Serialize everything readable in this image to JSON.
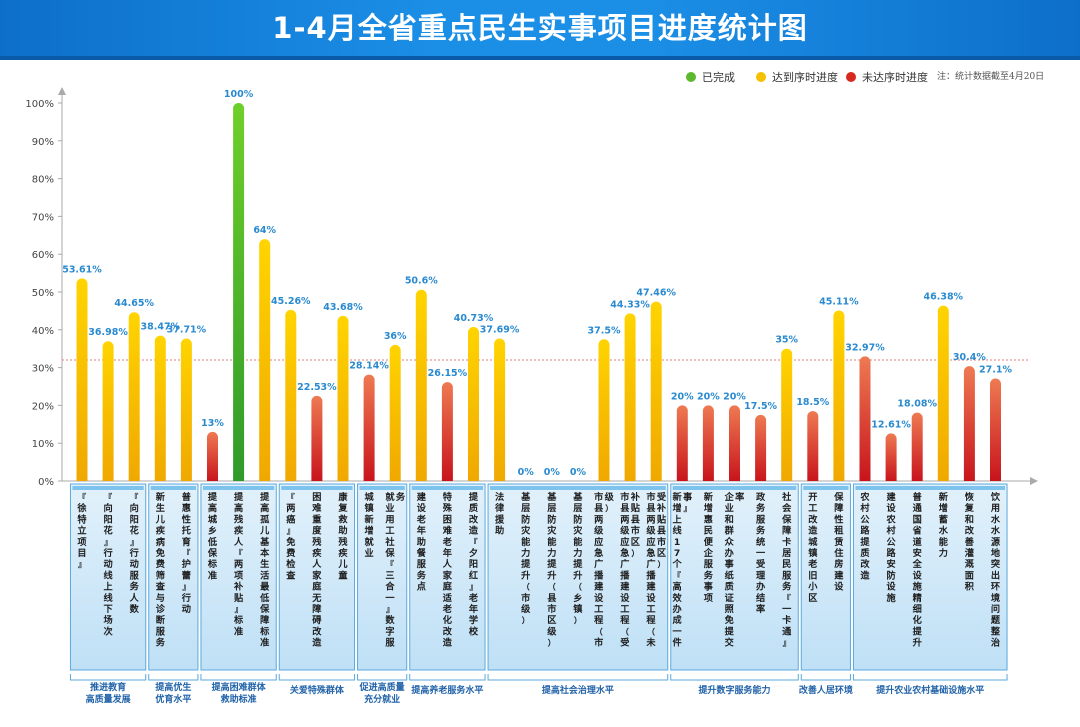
{
  "title": "1-4月全省重点民生实事项目进度统计图",
  "legend": [
    {
      "label": "已完成",
      "color": "#5cb82c"
    },
    {
      "label": "达到序时进度",
      "color": "#f5c000"
    },
    {
      "label": "未达序时进度",
      "color": "#d62a1e"
    }
  ],
  "note": "注：统计数据截至4月20日",
  "chart_data": {
    "type": "bar",
    "ylim": [
      0,
      100
    ],
    "yticks": [
      "0%",
      "10%",
      "20%",
      "30%",
      "40%",
      "50%",
      "60%",
      "70%",
      "80%",
      "90%",
      "100%"
    ],
    "reference_line": 32,
    "categories": [
      "『徐特立项目』",
      "『向阳花』行动线上线下场次",
      "『向阳花』行动服务人数",
      "新生儿疾病免费筛查与诊断服务",
      "普惠性托育『护蕾』行动",
      "提高城乡低保标准",
      "提高残疾人『两项补贴』标准",
      "提高孤儿基本生活最低保障标准",
      "『两癌』免费检查",
      "困难重度残疾人家庭无障碍改造",
      "康复救助残疾儿童",
      "城镇新增就业",
      "就业用工社保『三合一』数字服务",
      "建设老年助餐服务点",
      "特殊困难老年人家庭适老化改造",
      "提质改造『夕阳红』老年学校",
      "法律援助",
      "基层防灾能力提升（市级）",
      "基层防灾能力提升（县市区级）",
      "基层防灾能力提升（乡镇）",
      "市县两级应急广播建设工程（市级）",
      "市县两级应急广播建设工程（受补贴县市区）",
      "市县两级应急广播建设工程（未受补贴县市区）",
      "新增上线17个『高效办成一件事』",
      "新增惠民便企服务事项",
      "企业和群众办事纸质证照免提交率",
      "政务服务统一受理办结率",
      "社会保障卡居民服务『一卡通』",
      "开工改造城镇老旧小区",
      "保障性租赁住房建设",
      "农村公路提质改造",
      "建设农村公路安防设施",
      "普通国省道安全设施精细化提升",
      "新增蓄水能力",
      "恢复和改善灌溉面积",
      "饮用水水源地突出环境问题整治"
    ],
    "values": [
      53.61,
      36.98,
      44.65,
      38.47,
      37.71,
      13,
      100,
      64,
      45.26,
      22.53,
      43.68,
      28.14,
      36,
      50.6,
      26.15,
      40.73,
      37.69,
      0,
      0,
      0,
      37.5,
      44.33,
      47.46,
      20,
      20,
      20,
      17.5,
      35,
      18.5,
      45.11,
      32.97,
      12.61,
      18.08,
      46.38,
      30.4,
      27.1
    ],
    "labels": [
      "53.61%",
      "36.98%",
      "44.65%",
      "38.47%",
      "37.71%",
      "13%",
      "100%",
      "64%",
      "45.26%",
      "22.53%",
      "43.68%",
      "28.14%",
      "36%",
      "50.6%",
      "26.15%",
      "40.73%",
      "37.69%",
      "0%",
      "0%",
      "0%",
      "37.5%",
      "44.33%",
      "47.46%",
      "20%",
      "20%",
      "20%",
      "17.5%",
      "35%",
      "18.5%",
      "45.11%",
      "32.97%",
      "12.61%",
      "18.08%",
      "46.38%",
      "30.4%",
      "27.1%"
    ],
    "status": [
      "y",
      "y",
      "y",
      "y",
      "y",
      "r",
      "g",
      "y",
      "y",
      "r",
      "y",
      "r",
      "y",
      "y",
      "r",
      "y",
      "y",
      "y",
      "y",
      "y",
      "y",
      "y",
      "y",
      "r",
      "r",
      "r",
      "r",
      "y",
      "r",
      "y",
      "r",
      "r",
      "r",
      "y",
      "r",
      "r"
    ],
    "groups": [
      {
        "label": "推进教育\n高质量发展",
        "start": 0,
        "end": 2
      },
      {
        "label": "提高优生\n优育水平",
        "start": 3,
        "end": 4
      },
      {
        "label": "提高困难群体\n救助标准",
        "start": 5,
        "end": 7
      },
      {
        "label": "关爱特殊群体",
        "start": 8,
        "end": 10
      },
      {
        "label": "促进高质量\n充分就业",
        "start": 11,
        "end": 12
      },
      {
        "label": "提高养老服务水平",
        "start": 13,
        "end": 15
      },
      {
        "label": "提高社会治理水平",
        "start": 16,
        "end": 22
      },
      {
        "label": "提升数字服务能力",
        "start": 23,
        "end": 27
      },
      {
        "label": "改善人居环境",
        "start": 28,
        "end": 29
      },
      {
        "label": "提升农业农村基础设施水平",
        "start": 30,
        "end": 35
      }
    ]
  }
}
